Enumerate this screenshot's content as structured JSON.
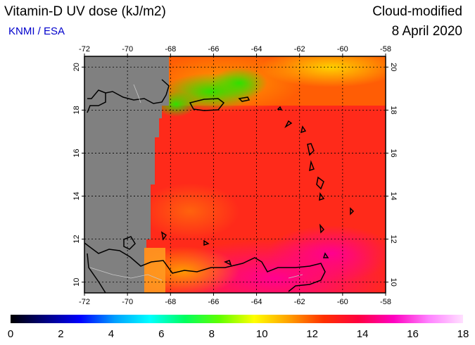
{
  "header": {
    "title": "Vitamin-D UV dose (kJ/m2)",
    "source": "KNMI / ESA",
    "mode": "Cloud-modified",
    "date": "8 April 2020"
  },
  "map": {
    "lon_range": [
      -72,
      -58
    ],
    "lat_range": [
      9.5,
      20.5
    ],
    "lon_ticks": [
      -72,
      -70,
      -68,
      -66,
      -64,
      -62,
      -60,
      -58
    ],
    "lat_ticks": [
      10,
      12,
      14,
      16,
      18,
      20
    ],
    "lon_tick_labels": [
      "-72",
      "-70",
      "-68",
      "-66",
      "-64",
      "-62",
      "-60",
      "-58"
    ],
    "lat_tick_labels": [
      "10",
      "12",
      "14",
      "16",
      "18",
      "20"
    ],
    "no_data_color": "#808080",
    "grid": "dotted"
  },
  "colorbar": {
    "min": 0,
    "max": 18,
    "tick_labels": [
      "0",
      "2",
      "4",
      "6",
      "8",
      "10",
      "12",
      "14",
      "16",
      "18"
    ],
    "colors": [
      "#000000",
      "#000080",
      "#0000ff",
      "#00a0ff",
      "#00ffff",
      "#00ff60",
      "#60ff00",
      "#ffff00",
      "#ffa000",
      "#ff3000",
      "#ff0040",
      "#ff00c0",
      "#ff80ff",
      "#ffe0ff"
    ]
  }
}
